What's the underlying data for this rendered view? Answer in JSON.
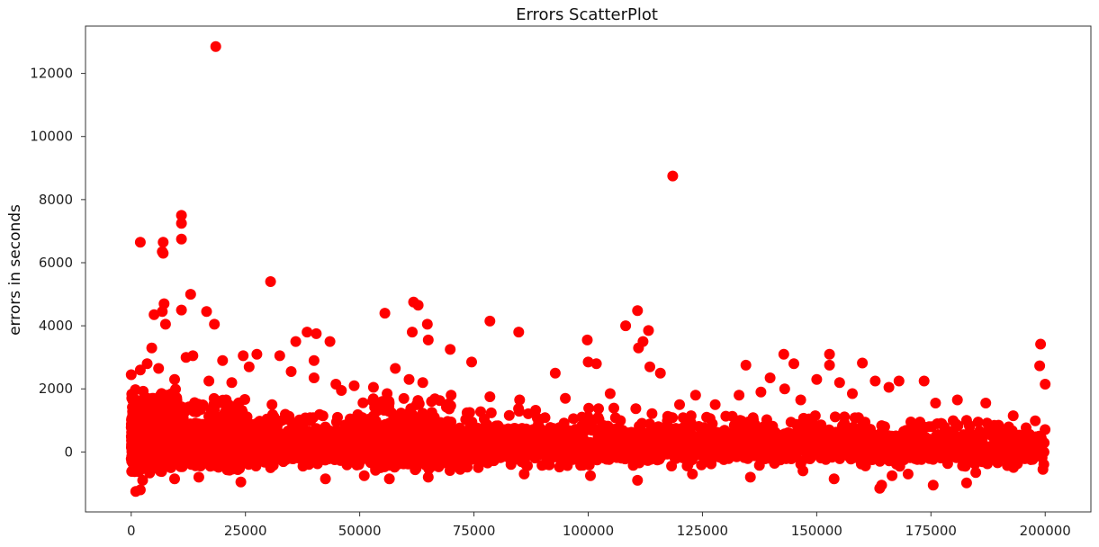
{
  "chart_data": {
    "type": "scatter",
    "title": "Errors ScatterPlot",
    "xlabel": "",
    "ylabel": "errors in seconds",
    "xlim": [
      -10000,
      210000
    ],
    "ylim": [
      -1900,
      13500
    ],
    "x_ticks": [
      0,
      25000,
      50000,
      75000,
      100000,
      125000,
      150000,
      175000,
      200000
    ],
    "y_ticks": [
      0,
      2000,
      4000,
      6000,
      8000,
      10000,
      12000
    ],
    "grid": false,
    "colors": {
      "marker": "#ff0000",
      "axis": "#333333"
    },
    "series": [
      {
        "name": "errors",
        "outliers": [
          [
            18500,
            12850
          ],
          [
            118500,
            8750
          ],
          [
            11000,
            7500
          ],
          [
            11000,
            7250
          ],
          [
            11000,
            6750
          ],
          [
            2000,
            6650
          ],
          [
            7000,
            6650
          ],
          [
            6800,
            6350
          ],
          [
            7000,
            6300
          ],
          [
            30500,
            5400
          ],
          [
            13000,
            5000
          ],
          [
            61800,
            4750
          ],
          [
            7200,
            4700
          ],
          [
            62800,
            4650
          ],
          [
            110800,
            4480
          ],
          [
            6800,
            4450
          ],
          [
            55500,
            4400
          ],
          [
            5000,
            4350
          ],
          [
            11000,
            4500
          ],
          [
            16500,
            4450
          ],
          [
            7500,
            4050
          ],
          [
            18200,
            4050
          ],
          [
            64800,
            4050
          ],
          [
            61500,
            3800
          ],
          [
            78500,
            4150
          ],
          [
            108200,
            4000
          ],
          [
            113200,
            3850
          ],
          [
            84800,
            3800
          ],
          [
            38500,
            3800
          ],
          [
            40500,
            3750
          ],
          [
            199000,
            3420
          ],
          [
            99800,
            3550
          ],
          [
            36000,
            3500
          ],
          [
            43500,
            3500
          ],
          [
            65000,
            3550
          ],
          [
            112000,
            3500
          ],
          [
            111000,
            3300
          ],
          [
            69800,
            3250
          ],
          [
            142800,
            3100
          ],
          [
            152800,
            3100
          ],
          [
            24500,
            3050
          ],
          [
            27500,
            3100
          ],
          [
            32500,
            3050
          ],
          [
            13500,
            3050
          ],
          [
            4500,
            3300
          ],
          [
            12000,
            3000
          ],
          [
            40000,
            2900
          ],
          [
            20000,
            2900
          ],
          [
            74500,
            2850
          ],
          [
            100000,
            2850
          ],
          [
            101800,
            2800
          ],
          [
            160000,
            2820
          ],
          [
            145000,
            2800
          ],
          [
            134500,
            2750
          ],
          [
            152800,
            2750
          ],
          [
            198800,
            2730
          ],
          [
            25800,
            2700
          ],
          [
            57800,
            2650
          ],
          [
            113500,
            2700
          ],
          [
            115800,
            2500
          ],
          [
            92800,
            2500
          ],
          [
            35000,
            2550
          ],
          [
            2000,
            2600
          ],
          [
            0,
            2450
          ],
          [
            40000,
            2350
          ],
          [
            162800,
            2250
          ],
          [
            173500,
            2250
          ],
          [
            168000,
            2250
          ],
          [
            200000,
            2150
          ],
          [
            139800,
            2350
          ],
          [
            150000,
            2300
          ],
          [
            155000,
            2200
          ],
          [
            143000,
            2000
          ],
          [
            133000,
            1800
          ],
          [
            137800,
            1900
          ],
          [
            187000,
            1550
          ],
          [
            180800,
            1650
          ],
          [
            165800,
            2050
          ],
          [
            123500,
            1800
          ],
          [
            104800,
            1850
          ],
          [
            95000,
            1700
          ],
          [
            78500,
            1750
          ],
          [
            70000,
            1800
          ],
          [
            63800,
            2200
          ],
          [
            56000,
            1850
          ],
          [
            48800,
            2100
          ],
          [
            44800,
            2150
          ],
          [
            22000,
            2200
          ],
          [
            17000,
            2250
          ],
          [
            9500,
            2300
          ],
          [
            6000,
            2650
          ],
          [
            3500,
            2800
          ],
          [
            30800,
            1500
          ],
          [
            46000,
            1950
          ],
          [
            53000,
            2050
          ],
          [
            60800,
            2300
          ],
          [
            85000,
            1650
          ],
          [
            120000,
            1500
          ],
          [
            127800,
            1500
          ],
          [
            146500,
            1650
          ],
          [
            157800,
            1850
          ],
          [
            176000,
            1550
          ],
          [
            193000,
            1150
          ],
          [
            182800,
            1000
          ],
          [
            189800,
            850
          ],
          [
            1000,
            -1250
          ],
          [
            2000,
            -1200
          ],
          [
            163800,
            -1150
          ],
          [
            164200,
            -1050
          ],
          [
            175500,
            -1050
          ],
          [
            182800,
            -980
          ],
          [
            2500,
            -900
          ],
          [
            24000,
            -950
          ],
          [
            42500,
            -850
          ],
          [
            56500,
            -850
          ],
          [
            65000,
            -800
          ],
          [
            100500,
            -750
          ],
          [
            110800,
            -900
          ],
          [
            122800,
            -700
          ],
          [
            135500,
            -800
          ],
          [
            153800,
            -850
          ],
          [
            166500,
            -750
          ],
          [
            170000,
            -700
          ],
          [
            184800,
            -650
          ],
          [
            199500,
            -550
          ],
          [
            51000,
            -750
          ],
          [
            9500,
            -850
          ],
          [
            14800,
            -800
          ],
          [
            30500,
            -500
          ],
          [
            72000,
            -550
          ],
          [
            86000,
            -700
          ],
          [
            147000,
            -600
          ]
        ],
        "dense_band": {
          "segments": [
            [
              0,
              10000,
              -700,
              2000,
              900
            ],
            [
              10000,
              25000,
              -600,
              1700,
              700
            ],
            [
              25000,
              50000,
              -450,
              1200,
              550
            ],
            [
              50000,
              70000,
              -600,
              1700,
              650
            ],
            [
              70000,
              120000,
              -500,
              1400,
              650
            ],
            [
              120000,
              160000,
              -450,
              1150,
              520
            ],
            [
              160000,
              200000,
              -500,
              1000,
              560
            ]
          ],
          "seed": 7
        }
      }
    ]
  }
}
